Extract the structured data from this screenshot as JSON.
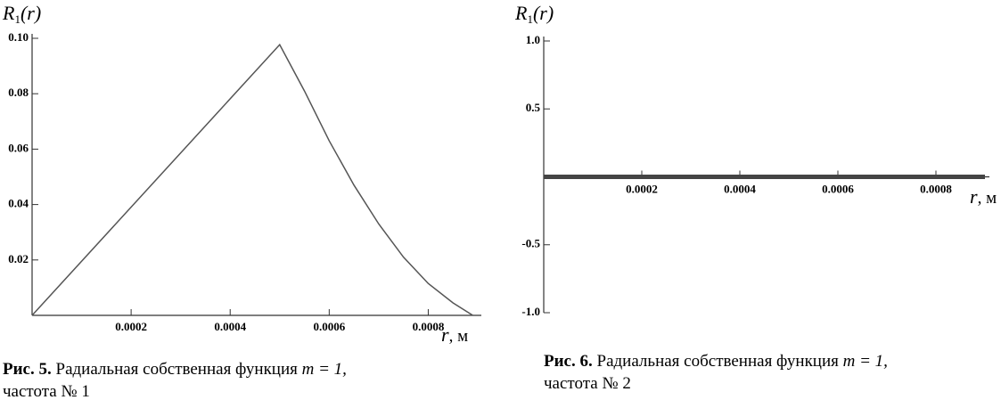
{
  "chart_data": [
    {
      "type": "line",
      "ylabel": [
        "R",
        "1",
        "(r)"
      ],
      "xlabel": [
        "r",
        ", м"
      ],
      "xlim": [
        0,
        0.0009
      ],
      "ylim": [
        0,
        0.1
      ],
      "xticks": [
        0.0002,
        0.0004,
        0.0006,
        0.0008
      ],
      "yticks": [
        0.02,
        0.04,
        0.06,
        0.08,
        {
          "value": 0.1,
          "label": "0.10"
        }
      ],
      "x": [
        0,
        0.0005,
        0.00055,
        0.0006,
        0.00065,
        0.0007,
        0.00075,
        0.0008,
        0.00085,
        0.00089
      ],
      "series": [
        {
          "color": "#555555",
          "values": [
            0,
            0.0977,
            0.081,
            0.063,
            0.047,
            0.033,
            0.021,
            0.0115,
            0.0045,
            0
          ]
        }
      ]
    },
    {
      "type": "line",
      "ylabel": [
        "R",
        "1",
        "(r)"
      ],
      "xlabel": [
        "r",
        ", м"
      ],
      "xlim": [
        0,
        0.0009
      ],
      "ylim": [
        -1,
        1
      ],
      "xticks": [
        0.0002,
        0.0004,
        0.0006,
        0.0008
      ],
      "yticks": [
        {
          "value": -1,
          "label": "-1.0"
        },
        -0.5,
        0.5,
        {
          "value": 1,
          "label": "1.0"
        }
      ],
      "x": [
        0,
        0.0009
      ],
      "series": [
        {
          "color": "#444444",
          "values": [
            0,
            0
          ]
        }
      ]
    }
  ],
  "captions": [
    {
      "label": "Рис. 5.",
      "text": "Радиальная собственная функция",
      "math": "m = 1,",
      "line2": "частота № 1"
    },
    {
      "label": "Рис. 6.",
      "text": "Радиальная собственная функция",
      "math": "m = 1,",
      "line2": "частота № 2"
    }
  ]
}
